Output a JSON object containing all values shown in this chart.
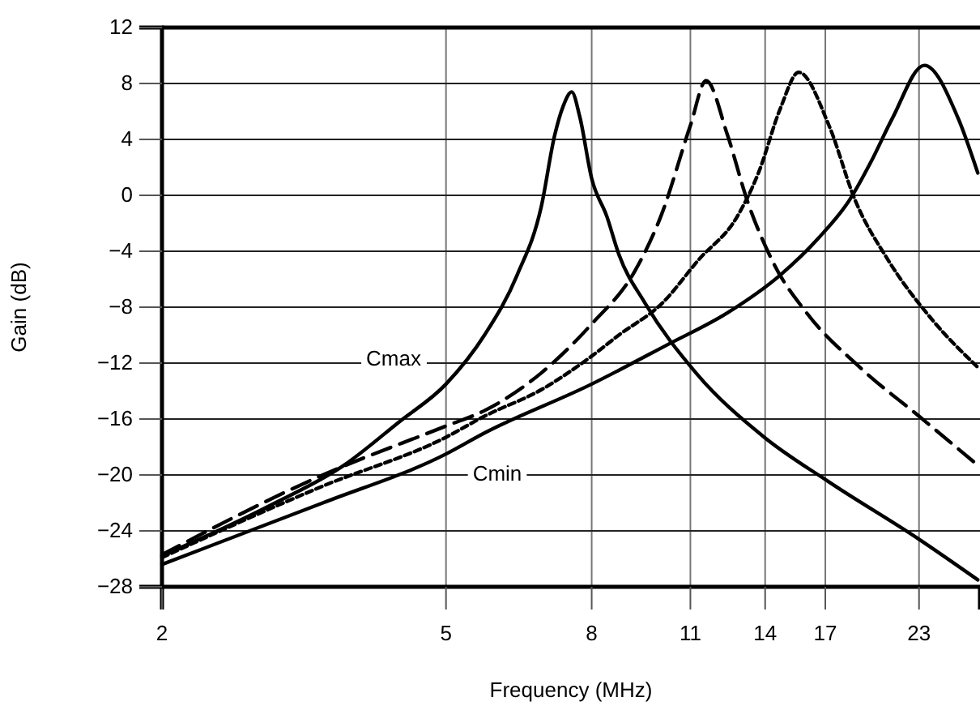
{
  "chart_data": {
    "type": "line",
    "xlabel": "Frequency (MHz)",
    "ylabel": "Gain (dB)",
    "log": "x",
    "grid": true,
    "xlim": [
      2,
      28
    ],
    "xticks": [
      2,
      5,
      8,
      11,
      14,
      17,
      23
    ],
    "ylim": [
      -28,
      12
    ],
    "yticks": [
      -28,
      -24,
      -20,
      -16,
      -12,
      -8,
      -4,
      0,
      4,
      8,
      12
    ],
    "series": [
      {
        "name": "Cmax",
        "color": "#000000",
        "line_style": "solid",
        "x": [
          2,
          2.83,
          3.6,
          4.3,
          5.0,
          5.66,
          6.29,
          6.8,
          7.1,
          7.3,
          7.5,
          7.7,
          8.0,
          8.4,
          8.73,
          9.5,
          11.2,
          13.96,
          17.2,
          23,
          27.8
        ],
        "values": [
          -25.8,
          -22.2,
          -19.3,
          -16.2,
          -13.5,
          -10,
          -5.7,
          -0.8,
          4.3,
          6.4,
          7.4,
          5.6,
          1.2,
          -1.5,
          -4.2,
          -7.7,
          -12.7,
          -17.3,
          -20.5,
          -24.6,
          -27.5
        ]
      },
      {
        "color": "#000000",
        "line_style": "dashed",
        "x": [
          2,
          3.36,
          5.0,
          5.66,
          6.8,
          8.0,
          9.2,
          10.0,
          11.0,
          11.57,
          12.4,
          13.2,
          14.4,
          16.0,
          19.0,
          23,
          27.8
        ],
        "values": [
          -25.7,
          -20,
          -16.5,
          -15.4,
          -12.7,
          -9.2,
          -5.4,
          -1.5,
          5,
          8.2,
          4.3,
          -0.3,
          -4.9,
          -8.4,
          -12.3,
          -15.8,
          -19.3
        ]
      },
      {
        "color": "#000000",
        "line_style": "dotted",
        "x": [
          2,
          3.36,
          5.0,
          5.66,
          6.8,
          8.0,
          8.73,
          10.05,
          11.3,
          12.8,
          13.7,
          14.7,
          15.6,
          17.2,
          18.7,
          20.8,
          24.0,
          27.8
        ],
        "values": [
          -25.9,
          -20.8,
          -17.3,
          -15.8,
          -13.9,
          -11.5,
          -10,
          -7.7,
          -4.6,
          -1.5,
          1.6,
          6.2,
          8.8,
          5,
          -0.3,
          -4.6,
          -8.9,
          -12.3
        ]
      },
      {
        "name": "Cmin",
        "color": "#000000",
        "line_style": "solid",
        "x": [
          2,
          3.36,
          5.0,
          5.66,
          8.0,
          10.2,
          12.4,
          14.7,
          16.6,
          18.4,
          19.7,
          21.1,
          23.4,
          26.1,
          27.8
        ],
        "values": [
          -26.4,
          -22,
          -18.5,
          -17,
          -13.5,
          -10.7,
          -8.4,
          -5.7,
          -3.1,
          -0.3,
          2.4,
          5.5,
          9.3,
          5.5,
          1.6
        ]
      }
    ]
  }
}
